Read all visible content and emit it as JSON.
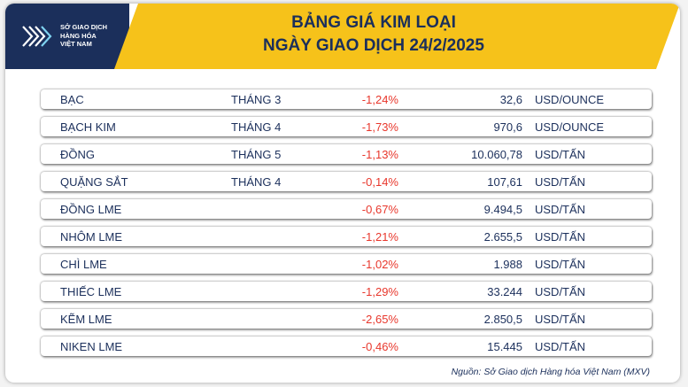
{
  "header": {
    "org_lines": [
      "SỞ GIAO DỊCH",
      "HÀNG HÓA",
      "VIỆT NAM"
    ],
    "title_line1": "BẢNG GIÁ KIM LOẠI",
    "title_line2": "NGÀY GIAO DỊCH 24/2/2025"
  },
  "rows": [
    {
      "name": "BẠC",
      "month": "THÁNG 3",
      "change": "-1,24%",
      "price": "32,6",
      "unit": "USD/OUNCE"
    },
    {
      "name": "BẠCH KIM",
      "month": "THÁNG 4",
      "change": "-1,73%",
      "price": "970,6",
      "unit": "USD/OUNCE"
    },
    {
      "name": "ĐỒNG",
      "month": "THÁNG 5",
      "change": "-1,13%",
      "price": "10.060,78",
      "unit": "USD/TẤN"
    },
    {
      "name": "QUẶNG SẮT",
      "month": "THÁNG 4",
      "change": "-0,14%",
      "price": "107,61",
      "unit": "USD/TẤN"
    },
    {
      "name": "ĐỒNG LME",
      "month": "",
      "change": "-0,67%",
      "price": "9.494,5",
      "unit": "USD/TẤN"
    },
    {
      "name": "NHÔM LME",
      "month": "",
      "change": "-1,21%",
      "price": "2.655,5",
      "unit": "USD/TẤN"
    },
    {
      "name": "CHÌ LME",
      "month": "",
      "change": "-1,02%",
      "price": "1.988",
      "unit": "USD/TẤN"
    },
    {
      "name": "THIẾC LME",
      "month": "",
      "change": "-1,29%",
      "price": "33.244",
      "unit": "USD/TẤN"
    },
    {
      "name": "KẼM LME",
      "month": "",
      "change": "-2,65%",
      "price": "2.850,5",
      "unit": "USD/TẤN"
    },
    {
      "name": "NIKEN LME",
      "month": "",
      "change": "-0,46%",
      "price": "15.445",
      "unit": "USD/TẤN"
    }
  ],
  "source": "Nguồn: Sở Giao dịch Hàng hóa Việt Nam (MXV)",
  "colors": {
    "navy": "#1b2f5b",
    "yellow": "#f6c21a",
    "negative": "#e8372c"
  }
}
